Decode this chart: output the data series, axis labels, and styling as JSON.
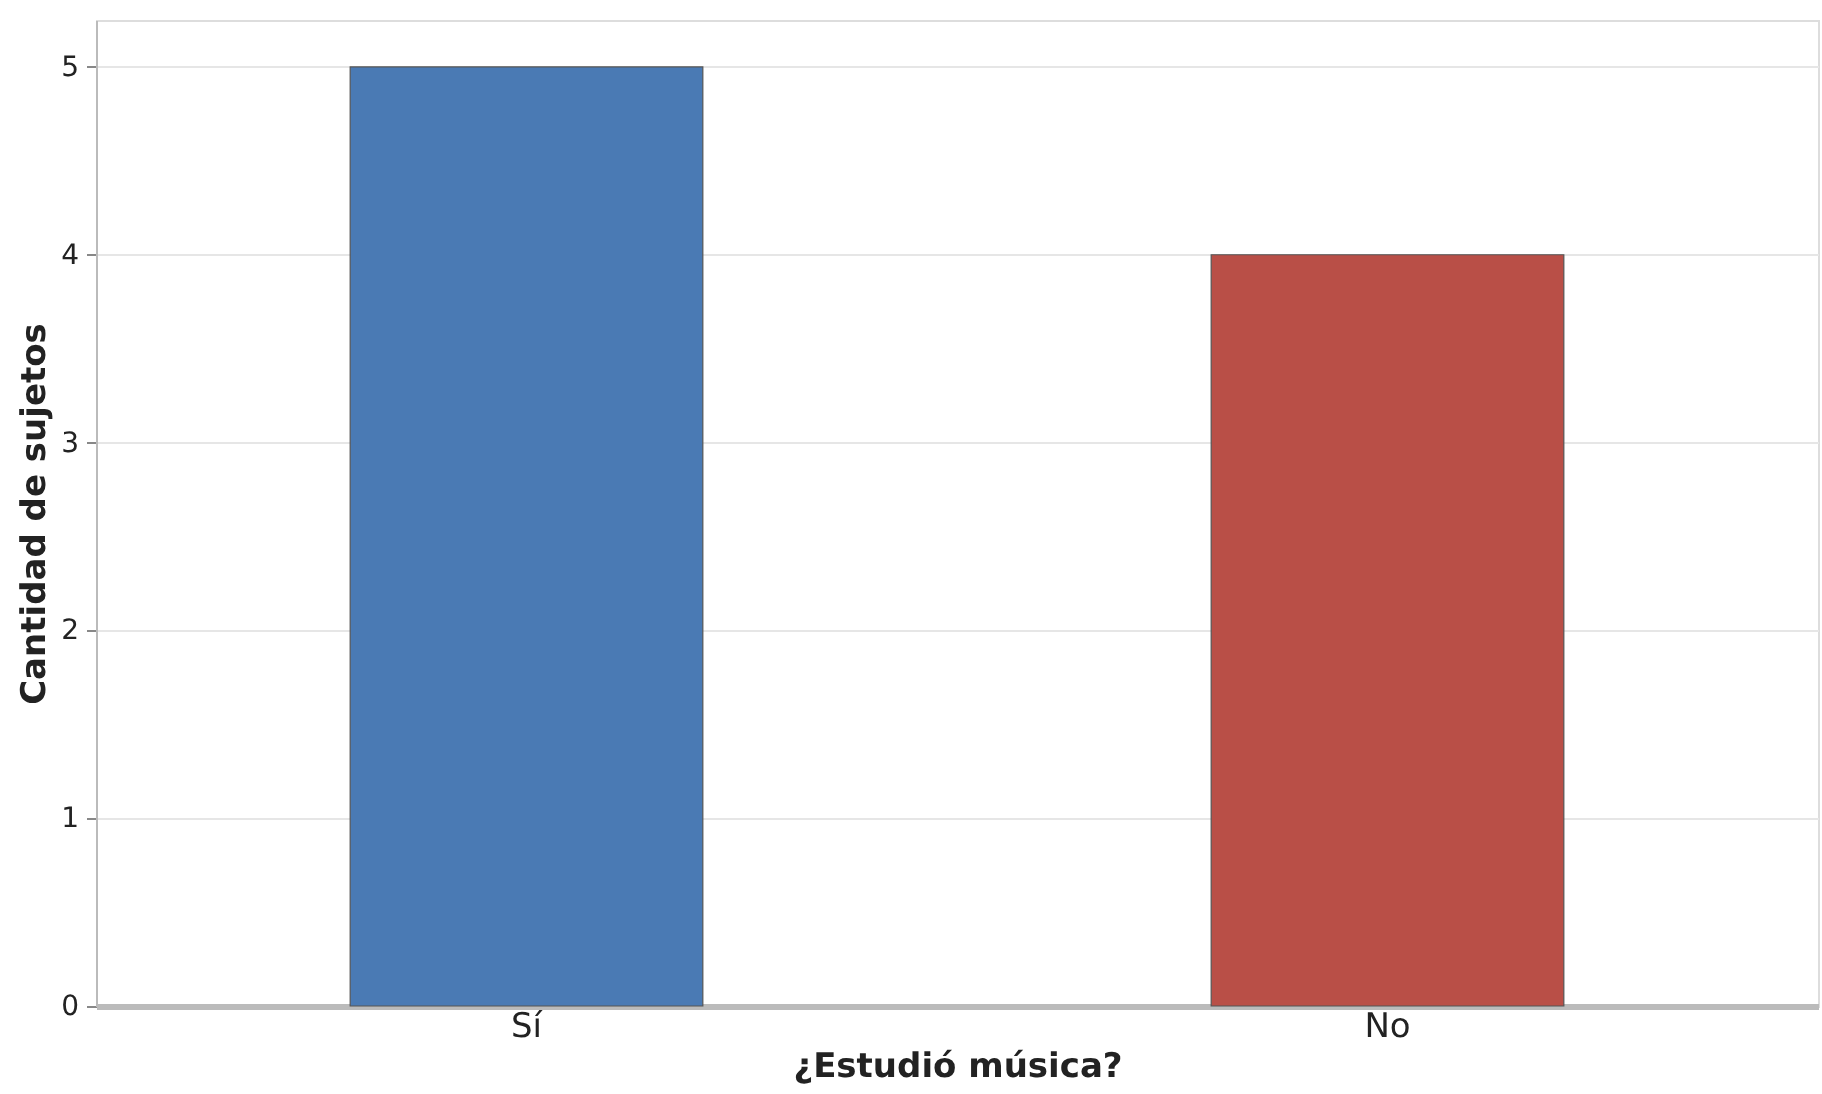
{
  "chart_data": {
    "type": "bar",
    "xlabel": "¿Estudió música?",
    "ylabel": "Cantidad de sujetos",
    "categories": [
      "Sí",
      "No"
    ],
    "values": [
      5,
      4
    ],
    "colors": [
      "#4a7ab4",
      "#b94f47"
    ],
    "ylim": [
      0,
      5.25
    ],
    "yticks": [
      0,
      1,
      2,
      3,
      4,
      5
    ],
    "grid": "y"
  }
}
